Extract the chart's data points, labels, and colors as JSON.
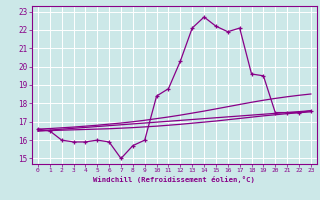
{
  "xlabel": "Windchill (Refroidissement éolien,°C)",
  "bg_color": "#cce8e8",
  "grid_color": "#ffffff",
  "line_color": "#880088",
  "x_ticks": [
    0,
    1,
    2,
    3,
    4,
    5,
    6,
    7,
    8,
    9,
    10,
    11,
    12,
    13,
    14,
    15,
    16,
    17,
    18,
    19,
    20,
    21,
    22,
    23
  ],
  "y_ticks": [
    15,
    16,
    17,
    18,
    19,
    20,
    21,
    22,
    23
  ],
  "xlim": [
    -0.5,
    23.5
  ],
  "ylim": [
    14.7,
    23.3
  ],
  "series1_x": [
    0,
    1,
    2,
    3,
    4,
    5,
    6,
    7,
    8,
    9,
    10,
    11,
    12,
    13,
    14,
    15,
    16,
    17,
    18,
    19,
    20,
    21,
    22,
    23
  ],
  "series1_y": [
    16.6,
    16.5,
    16.0,
    15.9,
    15.9,
    16.0,
    15.9,
    15.0,
    15.7,
    16.0,
    18.4,
    18.8,
    20.3,
    22.1,
    22.7,
    22.2,
    21.9,
    22.1,
    19.6,
    19.5,
    17.5,
    17.5,
    17.5,
    17.6
  ],
  "series2_x": [
    0,
    1,
    2,
    3,
    4,
    5,
    6,
    7,
    8,
    9,
    10,
    11,
    12,
    13,
    14,
    15,
    16,
    17,
    18,
    19,
    20,
    21,
    22,
    23
  ],
  "series2_y": [
    16.5,
    16.52,
    16.54,
    16.56,
    16.58,
    16.6,
    16.62,
    16.65,
    16.68,
    16.72,
    16.76,
    16.81,
    16.86,
    16.92,
    16.98,
    17.04,
    17.11,
    17.18,
    17.25,
    17.32,
    17.38,
    17.44,
    17.49,
    17.54
  ],
  "series3_x": [
    0,
    1,
    2,
    3,
    4,
    5,
    6,
    7,
    8,
    9,
    10,
    11,
    12,
    13,
    14,
    15,
    16,
    17,
    18,
    19,
    20,
    21,
    22,
    23
  ],
  "series3_y": [
    16.6,
    16.63,
    16.67,
    16.71,
    16.76,
    16.81,
    16.87,
    16.93,
    17.0,
    17.08,
    17.17,
    17.26,
    17.36,
    17.47,
    17.58,
    17.7,
    17.82,
    17.94,
    18.06,
    18.17,
    18.27,
    18.36,
    18.44,
    18.51
  ],
  "series4_x": [
    0,
    23
  ],
  "series4_y": [
    16.5,
    17.6
  ]
}
